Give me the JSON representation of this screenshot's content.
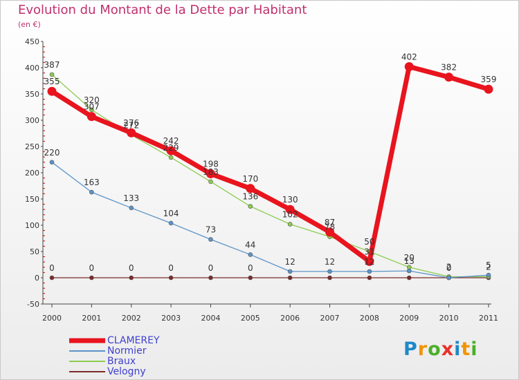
{
  "title": "Evolution du Montant de la Dette par Habitant",
  "subtitle": "(en €)",
  "logo": {
    "text": "Proxiti",
    "letters": [
      {
        "ch": "P",
        "color": "#1e88c9"
      },
      {
        "ch": "r",
        "color": "#f29400"
      },
      {
        "ch": "o",
        "color": "#4caf2a"
      },
      {
        "ch": "x",
        "color": "#e8312c"
      },
      {
        "ch": "i",
        "color": "#1e88c9"
      },
      {
        "ch": "t",
        "color": "#f29400"
      },
      {
        "ch": "i",
        "color": "#4caf2a"
      }
    ]
  },
  "chart_data": {
    "type": "line",
    "title": "Evolution du Montant de la Dette par Habitant",
    "subtitle": "(en €)",
    "x": [
      "2000",
      "2001",
      "2002",
      "2003",
      "2004",
      "2005",
      "2006",
      "2007",
      "2008",
      "2009",
      "2010",
      "2011"
    ],
    "ylim": [
      -50,
      450
    ],
    "yticks": [
      -50,
      0,
      50,
      100,
      150,
      200,
      250,
      300,
      350,
      400,
      450
    ],
    "grid": false,
    "legend_position": "bottom-left",
    "series": [
      {
        "name": "CLAMEREY",
        "color": "#e8141e",
        "values": [
          355,
          307,
          276,
          242,
          198,
          170,
          130,
          87,
          31,
          402,
          382,
          359
        ],
        "labels": [
          "355",
          "307",
          "276",
          "242",
          "198",
          "170",
          "130",
          "87",
          "31",
          "402",
          "382",
          "359"
        ]
      },
      {
        "name": "Normier",
        "color": "#5b93c8",
        "values": [
          220,
          163,
          133,
          104,
          73,
          44,
          12,
          12,
          12,
          13,
          0,
          5
        ],
        "labels": [
          "220",
          "163",
          "133",
          "104",
          "73",
          "44",
          "12",
          "12",
          "12",
          "13",
          "0",
          "5"
        ]
      },
      {
        "name": "Braux",
        "color": "#8ccc4e",
        "values": [
          387,
          320,
          272,
          229,
          183,
          136,
          102,
          78,
          50,
          20,
          2,
          2
        ],
        "labels": [
          "387",
          "320",
          "272",
          "229",
          "183",
          "136",
          "102",
          "78",
          "50",
          "20",
          "2",
          "2"
        ]
      },
      {
        "name": "Velogny",
        "color": "#7a2a2a",
        "values": [
          0,
          0,
          0,
          0,
          0,
          0,
          0,
          0,
          0,
          0,
          0,
          0
        ],
        "labels": [
          "0",
          "0",
          "0",
          "0",
          "0",
          "0",
          "",
          "",
          "",
          "",
          "",
          ""
        ]
      }
    ]
  }
}
